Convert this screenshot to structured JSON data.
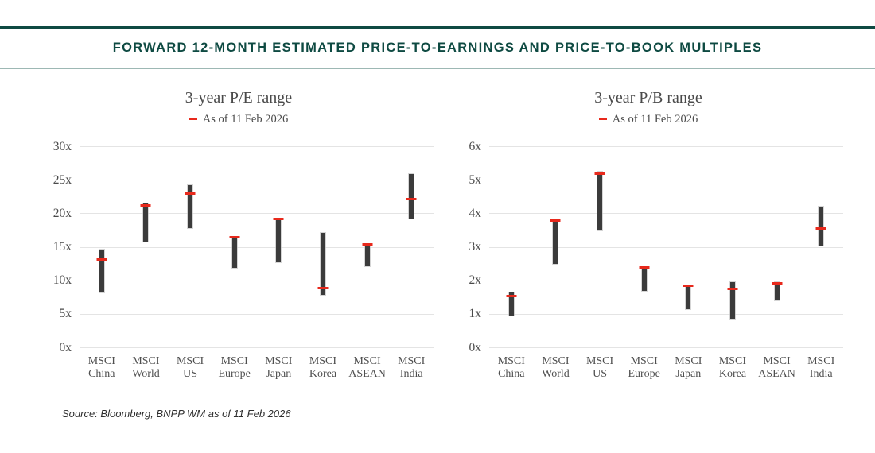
{
  "header": {
    "title": "FORWARD 12-MONTH ESTIMATED PRICE-TO-EARNINGS AND PRICE-TO-BOOK MULTIPLES"
  },
  "source_note": "Source: Bloomberg, BNPP WM as of 11 Feb 2026",
  "colors": {
    "accent_teal": "#0e4a42",
    "divider_gray_teal": "#9db8b4",
    "grid": "#e4e4e4",
    "bar_dark": "#3b3b3b",
    "marker_red": "#e8291c",
    "text_gray": "#4a4a4a"
  },
  "chart_data": [
    {
      "type": "range-bar",
      "title": "3-year P/E range",
      "legend_label": "As of 11 Feb 2026",
      "categories": [
        "MSCI China",
        "MSCI World",
        "MSCI US",
        "MSCI Europe",
        "MSCI Japan",
        "MSCI Korea",
        "MSCI ASEAN",
        "MSCI India"
      ],
      "ylim": [
        0,
        30
      ],
      "ytick_step": 5,
      "ytick_suffix": "x",
      "grid": true,
      "legend_position": "top",
      "series": [
        {
          "name": "3-year range",
          "type": "range",
          "low": [
            8.3,
            15.8,
            17.8,
            11.9,
            12.7,
            7.9,
            12.1,
            19.3
          ],
          "high": [
            14.7,
            21.5,
            24.3,
            16.5,
            19.2,
            17.1,
            15.5,
            25.9
          ]
        },
        {
          "name": "As of 11 Feb 2026",
          "type": "marker",
          "values": [
            13.2,
            21.2,
            23.0,
            16.5,
            19.2,
            8.9,
            15.4,
            22.2
          ]
        }
      ]
    },
    {
      "type": "range-bar",
      "title": "3-year P/B range",
      "legend_label": "As of 11 Feb 2026",
      "categories": [
        "MSCI China",
        "MSCI World",
        "MSCI US",
        "MSCI Europe",
        "MSCI Japan",
        "MSCI Korea",
        "MSCI ASEAN",
        "MSCI India"
      ],
      "ylim": [
        0,
        6
      ],
      "ytick_step": 1,
      "ytick_suffix": "x",
      "grid": true,
      "legend_position": "top",
      "series": [
        {
          "name": "3-year range",
          "type": "range",
          "low": [
            0.95,
            2.5,
            3.5,
            1.7,
            1.15,
            0.85,
            1.4,
            3.05
          ],
          "high": [
            1.65,
            3.8,
            5.25,
            2.4,
            1.85,
            1.95,
            1.95,
            4.2
          ]
        },
        {
          "name": "As of 11 Feb 2026",
          "type": "marker",
          "values": [
            1.55,
            3.8,
            5.2,
            2.4,
            1.85,
            1.75,
            1.93,
            3.55
          ]
        }
      ]
    }
  ]
}
